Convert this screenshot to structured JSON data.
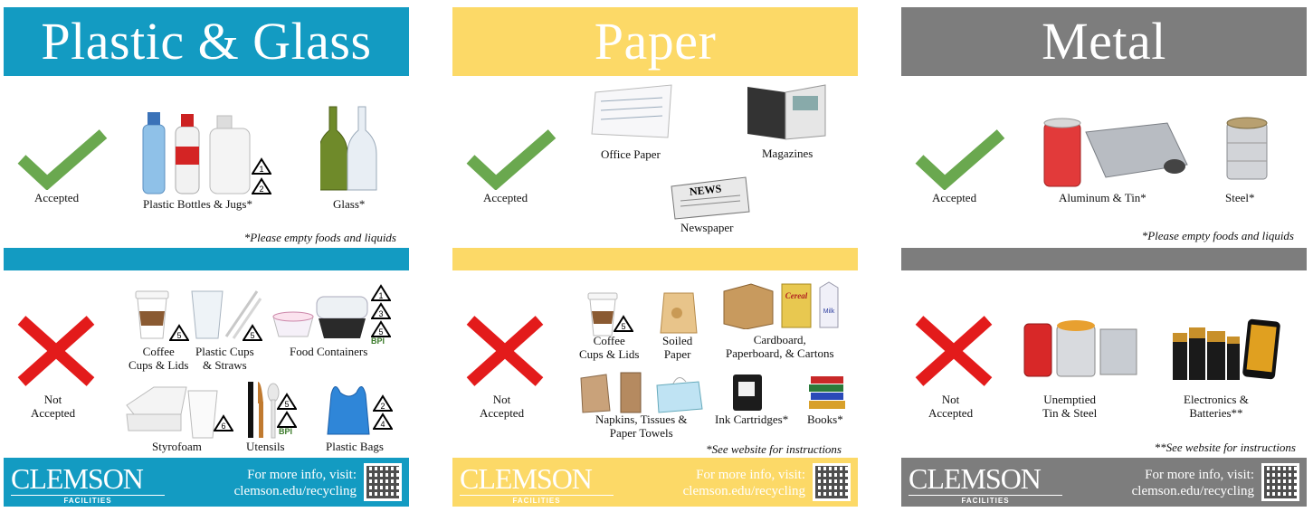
{
  "panels": {
    "plastic": {
      "title": "Plastic & Glass",
      "color": "#139bc2",
      "accepted_label": "Accepted",
      "accepted_items": [
        "Plastic Bottles & Jugs*",
        "Glass*"
      ],
      "accepted_codes": [
        "1",
        "2"
      ],
      "note": "*Please empty foods and liquids",
      "not_accepted_label": "Not\nAccepted",
      "not_accepted_items": [
        "Coffee\nCups & Lids",
        "Plastic Cups\n& Straws",
        "Food Containers",
        "Styrofoam",
        "Utensils",
        "Plastic Bags"
      ],
      "codes": {
        "coffee": "5",
        "cups": "5",
        "containers": [
          "1",
          "3",
          "5"
        ],
        "styrofoam": "6",
        "utensils": "5",
        "bags": [
          "2",
          "4"
        ],
        "bpi": "BPI"
      },
      "footer": {
        "logo": "CLEMSON",
        "logo_sub": "FACILITIES",
        "info_line1": "For more info, visit:",
        "info_line2": "clemson.edu/recycling"
      }
    },
    "paper": {
      "title": "Paper",
      "color": "#fcd967",
      "accepted_label": "Accepted",
      "accepted_items": [
        "Office Paper",
        "Magazines",
        "Newspaper"
      ],
      "newspaper_masthead": "NEWS",
      "not_accepted_label": "Not\nAccepted",
      "not_accepted_items": [
        "Coffee\nCups & Lids",
        "Soiled\nPaper",
        "Cardboard,\nPaperboard, & Cartons",
        "Napkins, Tissues &\nPaper Towels",
        "Ink Cartridges*",
        "Books*"
      ],
      "codes": {
        "coffee": "5"
      },
      "box_labels": {
        "cereal": "Cereal",
        "milk": "Milk"
      },
      "note": "*See website for instructions",
      "footer": {
        "logo": "CLEMSON",
        "logo_sub": "FACILITIES",
        "info_line1": "For more info, visit:",
        "info_line2": "clemson.edu/recycling"
      }
    },
    "metal": {
      "title": "Metal",
      "color": "#7d7d7d",
      "accepted_label": "Accepted",
      "accepted_items": [
        "Aluminum & Tin*",
        "Steel*"
      ],
      "note": "*Please empty foods and liquids",
      "not_accepted_label": "Not\nAccepted",
      "not_accepted_items": [
        "Unemptied\nTin & Steel",
        "Electronics &\nBatteries**"
      ],
      "note2": "**See website for instructions",
      "footer": {
        "logo": "CLEMSON",
        "logo_sub": "FACILITIES",
        "info_line1": "For more info, visit:",
        "info_line2": "clemson.edu/recycling"
      }
    }
  },
  "colors": {
    "check": "#6aa84f",
    "cross": "#e31b1b"
  },
  "icons": [
    "checkmark-icon",
    "x-mark-icon",
    "recycle-triangle-icon",
    "paw-icon",
    "qr-code-icon"
  ]
}
